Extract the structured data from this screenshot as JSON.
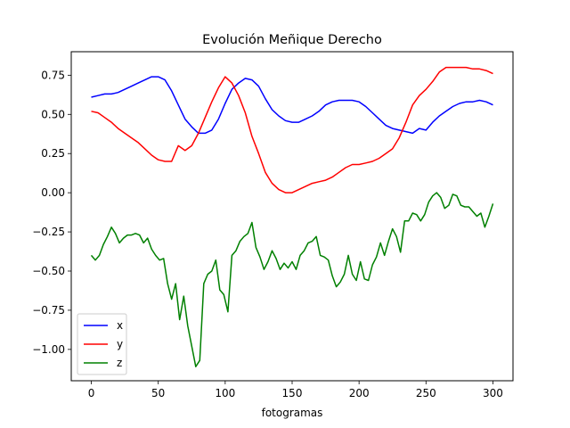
{
  "chart_data": {
    "type": "line",
    "title": "Evolución Meñique Derecho",
    "xlabel": "fotogramas",
    "ylabel": "",
    "xlim": [
      -15,
      315
    ],
    "ylim": [
      -1.2,
      0.9
    ],
    "x_ticks": [
      0,
      50,
      100,
      150,
      200,
      250,
      300
    ],
    "x_tick_labels": [
      "0",
      "50",
      "100",
      "150",
      "200",
      "250",
      "300"
    ],
    "y_ticks": [
      0.75,
      0.5,
      0.25,
      0.0,
      -0.25,
      -0.5,
      -0.75,
      -1.0
    ],
    "y_tick_labels": [
      "0.75",
      "0.50",
      "0.25",
      "0.00",
      "−0.25",
      "−0.50",
      "−0.75",
      "−1.00"
    ],
    "grid": false,
    "legend_position": "lower-left",
    "series": [
      {
        "name": "x",
        "color": "#0000ff",
        "x": [
          0,
          5,
          10,
          15,
          20,
          25,
          30,
          35,
          40,
          45,
          50,
          55,
          60,
          65,
          70,
          75,
          80,
          85,
          90,
          95,
          100,
          105,
          110,
          115,
          120,
          125,
          130,
          135,
          140,
          145,
          150,
          155,
          160,
          165,
          170,
          175,
          180,
          185,
          190,
          195,
          200,
          205,
          210,
          215,
          220,
          225,
          230,
          235,
          240,
          245,
          250,
          255,
          260,
          265,
          270,
          275,
          280,
          285,
          290,
          295,
          300
        ],
        "values": [
          0.61,
          0.62,
          0.63,
          0.63,
          0.64,
          0.66,
          0.68,
          0.7,
          0.72,
          0.74,
          0.74,
          0.72,
          0.65,
          0.56,
          0.47,
          0.42,
          0.38,
          0.38,
          0.4,
          0.47,
          0.57,
          0.66,
          0.7,
          0.73,
          0.72,
          0.68,
          0.6,
          0.53,
          0.49,
          0.46,
          0.45,
          0.45,
          0.47,
          0.49,
          0.52,
          0.56,
          0.58,
          0.59,
          0.59,
          0.59,
          0.58,
          0.55,
          0.51,
          0.47,
          0.43,
          0.41,
          0.4,
          0.39,
          0.38,
          0.41,
          0.4,
          0.45,
          0.49,
          0.52,
          0.55,
          0.57,
          0.58,
          0.58,
          0.59,
          0.58,
          0.56
        ]
      },
      {
        "name": "y",
        "color": "#ff0000",
        "x": [
          0,
          5,
          10,
          15,
          20,
          25,
          30,
          35,
          40,
          45,
          50,
          55,
          60,
          65,
          70,
          75,
          80,
          85,
          90,
          95,
          100,
          105,
          110,
          115,
          120,
          125,
          130,
          135,
          140,
          145,
          150,
          155,
          160,
          165,
          170,
          175,
          180,
          185,
          190,
          195,
          200,
          205,
          210,
          215,
          220,
          225,
          230,
          235,
          240,
          245,
          250,
          255,
          260,
          265,
          270,
          275,
          280,
          285,
          290,
          295,
          300
        ],
        "values": [
          0.52,
          0.51,
          0.48,
          0.45,
          0.41,
          0.38,
          0.35,
          0.32,
          0.28,
          0.24,
          0.21,
          0.2,
          0.2,
          0.3,
          0.27,
          0.3,
          0.38,
          0.48,
          0.58,
          0.67,
          0.74,
          0.7,
          0.62,
          0.51,
          0.36,
          0.25,
          0.13,
          0.06,
          0.02,
          0.0,
          0.0,
          0.02,
          0.04,
          0.06,
          0.07,
          0.08,
          0.1,
          0.13,
          0.16,
          0.18,
          0.18,
          0.19,
          0.2,
          0.22,
          0.25,
          0.28,
          0.35,
          0.45,
          0.56,
          0.62,
          0.66,
          0.71,
          0.77,
          0.8,
          0.8,
          0.8,
          0.8,
          0.79,
          0.79,
          0.78,
          0.76
        ]
      },
      {
        "name": "z",
        "color": "#008000",
        "x": [
          0,
          3,
          6,
          9,
          12,
          15,
          18,
          21,
          24,
          27,
          30,
          33,
          36,
          39,
          42,
          45,
          48,
          51,
          54,
          57,
          60,
          63,
          66,
          69,
          72,
          75,
          78,
          81,
          84,
          87,
          90,
          93,
          96,
          99,
          102,
          105,
          108,
          111,
          114,
          117,
          120,
          123,
          126,
          129,
          132,
          135,
          138,
          141,
          144,
          147,
          150,
          153,
          156,
          159,
          162,
          165,
          168,
          171,
          174,
          177,
          180,
          183,
          186,
          189,
          192,
          195,
          198,
          201,
          204,
          207,
          210,
          213,
          216,
          219,
          222,
          225,
          228,
          231,
          234,
          237,
          240,
          243,
          246,
          249,
          252,
          255,
          258,
          261,
          264,
          267,
          270,
          273,
          276,
          279,
          282,
          285,
          288,
          291,
          294,
          297,
          300
        ],
        "values": [
          -0.4,
          -0.43,
          -0.4,
          -0.33,
          -0.28,
          -0.22,
          -0.26,
          -0.32,
          -0.29,
          -0.27,
          -0.27,
          -0.26,
          -0.27,
          -0.32,
          -0.29,
          -0.36,
          -0.4,
          -0.43,
          -0.42,
          -0.58,
          -0.68,
          -0.58,
          -0.81,
          -0.66,
          -0.85,
          -0.98,
          -1.11,
          -1.07,
          -0.58,
          -0.52,
          -0.5,
          -0.43,
          -0.62,
          -0.65,
          -0.76,
          -0.4,
          -0.37,
          -0.31,
          -0.28,
          -0.26,
          -0.19,
          -0.35,
          -0.41,
          -0.49,
          -0.44,
          -0.37,
          -0.42,
          -0.49,
          -0.45,
          -0.48,
          -0.44,
          -0.49,
          -0.4,
          -0.37,
          -0.32,
          -0.31,
          -0.28,
          -0.4,
          -0.41,
          -0.43,
          -0.53,
          -0.6,
          -0.57,
          -0.52,
          -0.4,
          -0.52,
          -0.56,
          -0.44,
          -0.55,
          -0.56,
          -0.46,
          -0.41,
          -0.32,
          -0.4,
          -0.31,
          -0.23,
          -0.28,
          -0.38,
          -0.18,
          -0.18,
          -0.13,
          -0.14,
          -0.18,
          -0.14,
          -0.06,
          -0.02,
          0.0,
          -0.03,
          -0.1,
          -0.08,
          -0.01,
          -0.02,
          -0.08,
          -0.09,
          -0.09,
          -0.12,
          -0.15,
          -0.13,
          -0.22,
          -0.15,
          -0.07
        ]
      }
    ]
  }
}
